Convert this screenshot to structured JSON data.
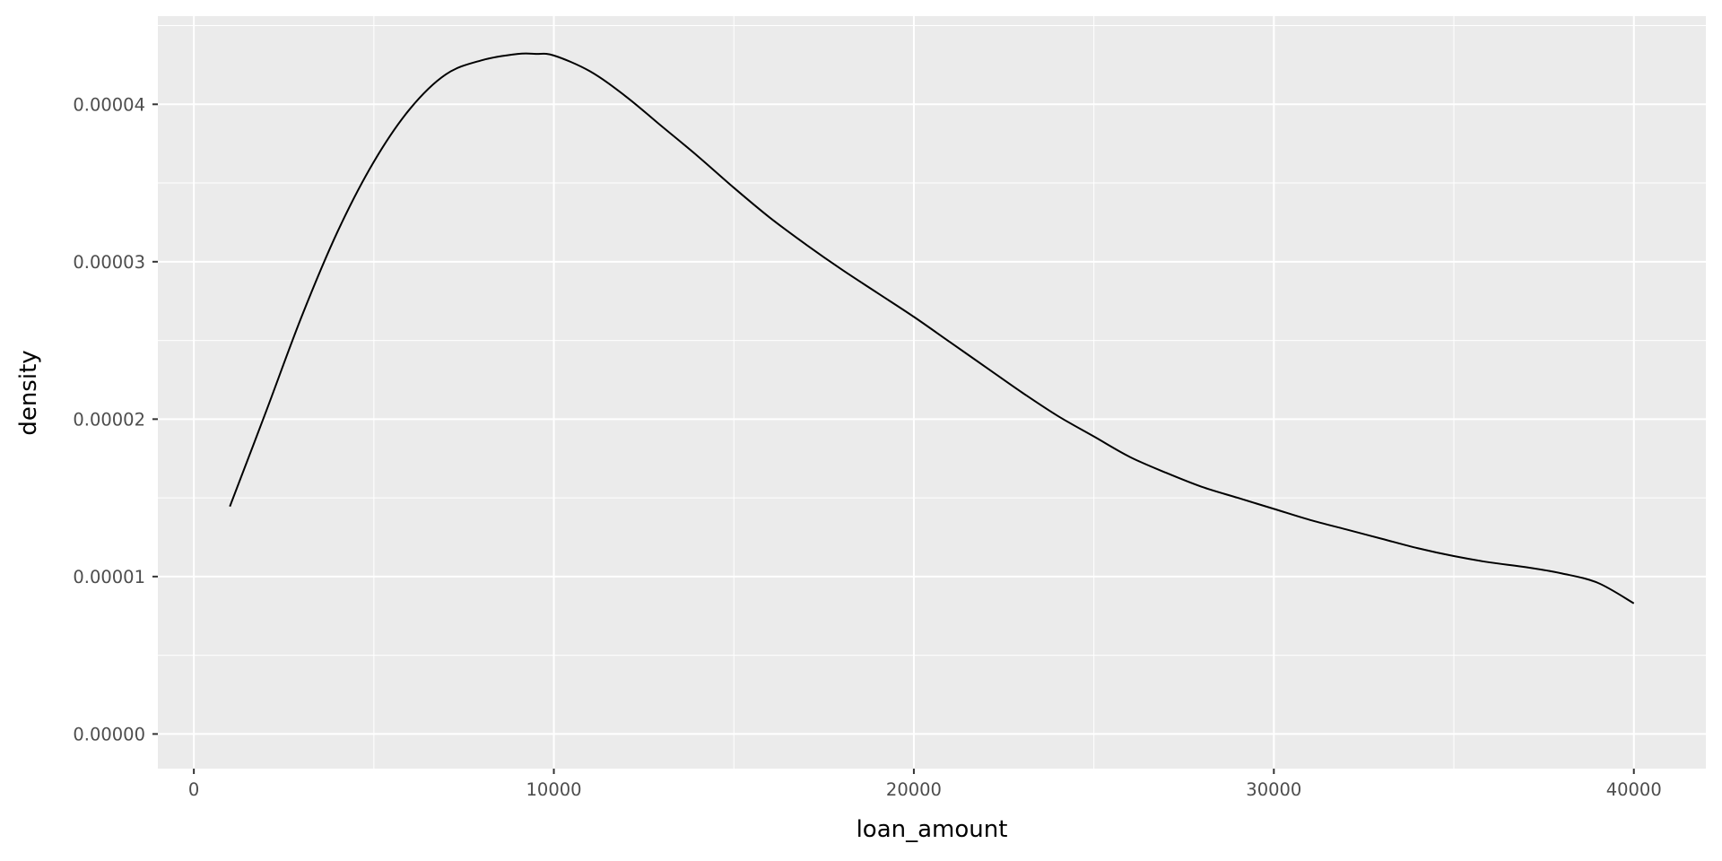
{
  "chart_data": {
    "type": "line",
    "title": "",
    "xlabel": "loan_amount",
    "ylabel": "density",
    "xlim": [
      -1000,
      42000
    ],
    "ylim": [
      -2.2e-06,
      4.56e-05
    ],
    "x_ticks": [
      0,
      10000,
      20000,
      30000,
      40000
    ],
    "x_tick_labels": [
      "0",
      "10000",
      "20000",
      "30000",
      "40000"
    ],
    "y_ticks": [
      0,
      1e-05,
      2e-05,
      3e-05,
      4e-05
    ],
    "y_tick_labels": [
      "0.00000",
      "0.00001",
      "0.00002",
      "0.00003",
      "0.00004"
    ],
    "grid": true,
    "legend": "none",
    "series": [
      {
        "x": [
          1000,
          2000,
          3000,
          4000,
          5000,
          6000,
          7000,
          8000,
          9000,
          9500,
          10000,
          11000,
          12000,
          13000,
          14000,
          15000,
          16000,
          17000,
          18000,
          19000,
          20000,
          21000,
          22000,
          23000,
          24000,
          25000,
          26000,
          27000,
          28000,
          29000,
          30000,
          31000,
          32000,
          33000,
          34000,
          35000,
          36000,
          37000,
          38000,
          39000,
          40000
        ],
        "y": [
          1.445e-05,
          2.045e-05,
          2.655e-05,
          3.195e-05,
          3.635e-05,
          3.97e-05,
          4.19e-05,
          4.28e-05,
          4.32e-05,
          4.32e-05,
          4.31e-05,
          4.21e-05,
          4.05e-05,
          3.86e-05,
          3.67e-05,
          3.47e-05,
          3.28e-05,
          3.11e-05,
          2.95e-05,
          2.8e-05,
          2.65e-05,
          2.49e-05,
          2.33e-05,
          2.17e-05,
          2.02e-05,
          1.89e-05,
          1.76e-05,
          1.66e-05,
          1.57e-05,
          1.5e-05,
          1.43e-05,
          1.36e-05,
          1.3e-05,
          1.24e-05,
          1.18e-05,
          1.13e-05,
          1.09e-05,
          1.06e-05,
          1.02e-05,
          9.6e-06,
          8.3e-06
        ]
      }
    ],
    "colors": {
      "panel_background": "#ebebeb",
      "grid_major": "#ffffff",
      "line": "#000000",
      "tick_text": "#4d4d4d",
      "axis_title_text": "#000000"
    }
  }
}
